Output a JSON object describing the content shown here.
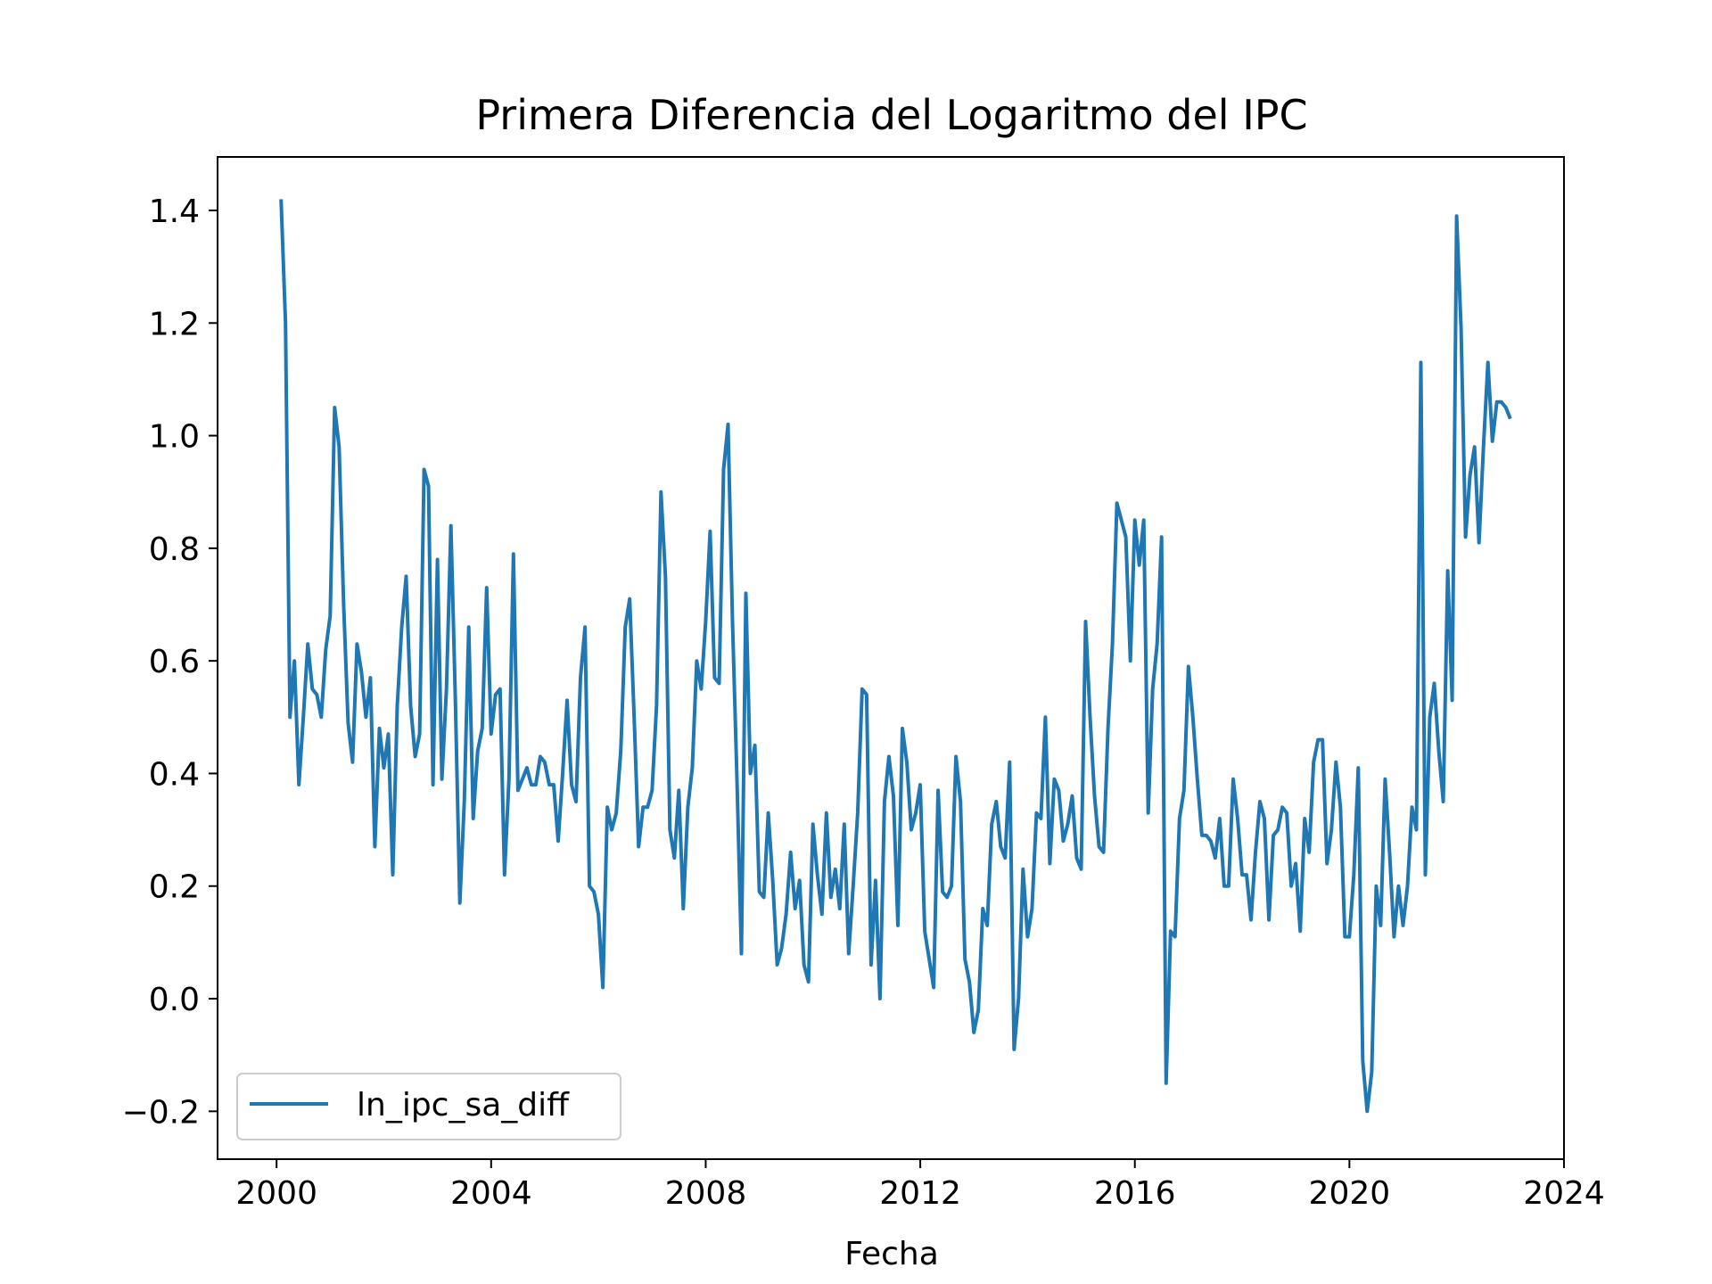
{
  "chart_data": {
    "type": "line",
    "title": "Primera Diferencia del Logaritmo del IPC",
    "xlabel": "Fecha",
    "ylabel": "",
    "x_ticks": [
      2000,
      2004,
      2008,
      2012,
      2016,
      2020,
      2024
    ],
    "y_ticks": [
      -0.2,
      0.0,
      0.2,
      0.4,
      0.6,
      0.8,
      1.0,
      1.2,
      1.4
    ],
    "y_tick_labels": [
      "−0.2",
      "0.0",
      "0.2",
      "0.4",
      "0.6",
      "0.8",
      "1.0",
      "1.2",
      "1.4"
    ],
    "xlim": [
      1998.9,
      2024.0
    ],
    "ylim": [
      -0.285,
      1.495
    ],
    "grid": false,
    "legend_position": "lower-left",
    "series": [
      {
        "name": "ln_ipc_sa_diff",
        "color": "#1f77b4",
        "x_start": 2000.083,
        "x_step": 0.08333,
        "values": [
          1.42,
          1.2,
          0.5,
          0.6,
          0.38,
          0.5,
          0.63,
          0.55,
          0.54,
          0.5,
          0.62,
          0.68,
          1.05,
          0.98,
          0.7,
          0.49,
          0.42,
          0.63,
          0.58,
          0.5,
          0.57,
          0.27,
          0.48,
          0.41,
          0.47,
          0.22,
          0.52,
          0.66,
          0.75,
          0.52,
          0.43,
          0.47,
          0.94,
          0.91,
          0.38,
          0.78,
          0.39,
          0.55,
          0.84,
          0.53,
          0.17,
          0.35,
          0.66,
          0.32,
          0.44,
          0.48,
          0.73,
          0.47,
          0.54,
          0.55,
          0.22,
          0.39,
          0.79,
          0.37,
          0.39,
          0.41,
          0.38,
          0.38,
          0.43,
          0.42,
          0.38,
          0.38,
          0.28,
          0.4,
          0.53,
          0.38,
          0.35,
          0.57,
          0.66,
          0.2,
          0.19,
          0.15,
          0.02,
          0.34,
          0.3,
          0.33,
          0.44,
          0.66,
          0.71,
          0.5,
          0.27,
          0.34,
          0.34,
          0.37,
          0.52,
          0.9,
          0.75,
          0.3,
          0.25,
          0.37,
          0.16,
          0.34,
          0.41,
          0.6,
          0.55,
          0.67,
          0.83,
          0.57,
          0.56,
          0.94,
          1.02,
          0.67,
          0.39,
          0.08,
          0.72,
          0.4,
          0.45,
          0.19,
          0.18,
          0.33,
          0.21,
          0.06,
          0.09,
          0.15,
          0.26,
          0.16,
          0.21,
          0.06,
          0.03,
          0.31,
          0.22,
          0.15,
          0.33,
          0.18,
          0.23,
          0.16,
          0.31,
          0.08,
          0.2,
          0.33,
          0.55,
          0.54,
          0.06,
          0.21,
          0.0,
          0.35,
          0.43,
          0.36,
          0.13,
          0.48,
          0.42,
          0.3,
          0.33,
          0.38,
          0.12,
          0.07,
          0.02,
          0.37,
          0.19,
          0.18,
          0.2,
          0.43,
          0.35,
          0.07,
          0.03,
          -0.06,
          -0.02,
          0.16,
          0.13,
          0.31,
          0.35,
          0.27,
          0.25,
          0.42,
          -0.09,
          0.0,
          0.23,
          0.11,
          0.16,
          0.33,
          0.32,
          0.5,
          0.24,
          0.39,
          0.37,
          0.28,
          0.31,
          0.36,
          0.25,
          0.23,
          0.67,
          0.5,
          0.36,
          0.27,
          0.26,
          0.48,
          0.63,
          0.88,
          0.85,
          0.82,
          0.6,
          0.85,
          0.77,
          0.85,
          0.33,
          0.55,
          0.63,
          0.82,
          -0.15,
          0.12,
          0.11,
          0.32,
          0.37,
          0.59,
          0.5,
          0.39,
          0.29,
          0.29,
          0.28,
          0.25,
          0.32,
          0.2,
          0.2,
          0.39,
          0.32,
          0.22,
          0.22,
          0.14,
          0.26,
          0.35,
          0.32,
          0.14,
          0.29,
          0.3,
          0.34,
          0.33,
          0.2,
          0.24,
          0.12,
          0.32,
          0.26,
          0.42,
          0.46,
          0.46,
          0.24,
          0.3,
          0.42,
          0.34,
          0.11,
          0.11,
          0.22,
          0.41,
          -0.11,
          -0.2,
          -0.13,
          0.2,
          0.13,
          0.39,
          0.26,
          0.11,
          0.2,
          0.13,
          0.2,
          0.34,
          0.3,
          1.13,
          0.22,
          0.5,
          0.56,
          0.44,
          0.35,
          0.76,
          0.53,
          1.39,
          1.19,
          0.82,
          0.93,
          0.98,
          0.81,
          0.98,
          1.13,
          0.99,
          1.06,
          1.06,
          1.05,
          1.03
        ]
      }
    ]
  }
}
